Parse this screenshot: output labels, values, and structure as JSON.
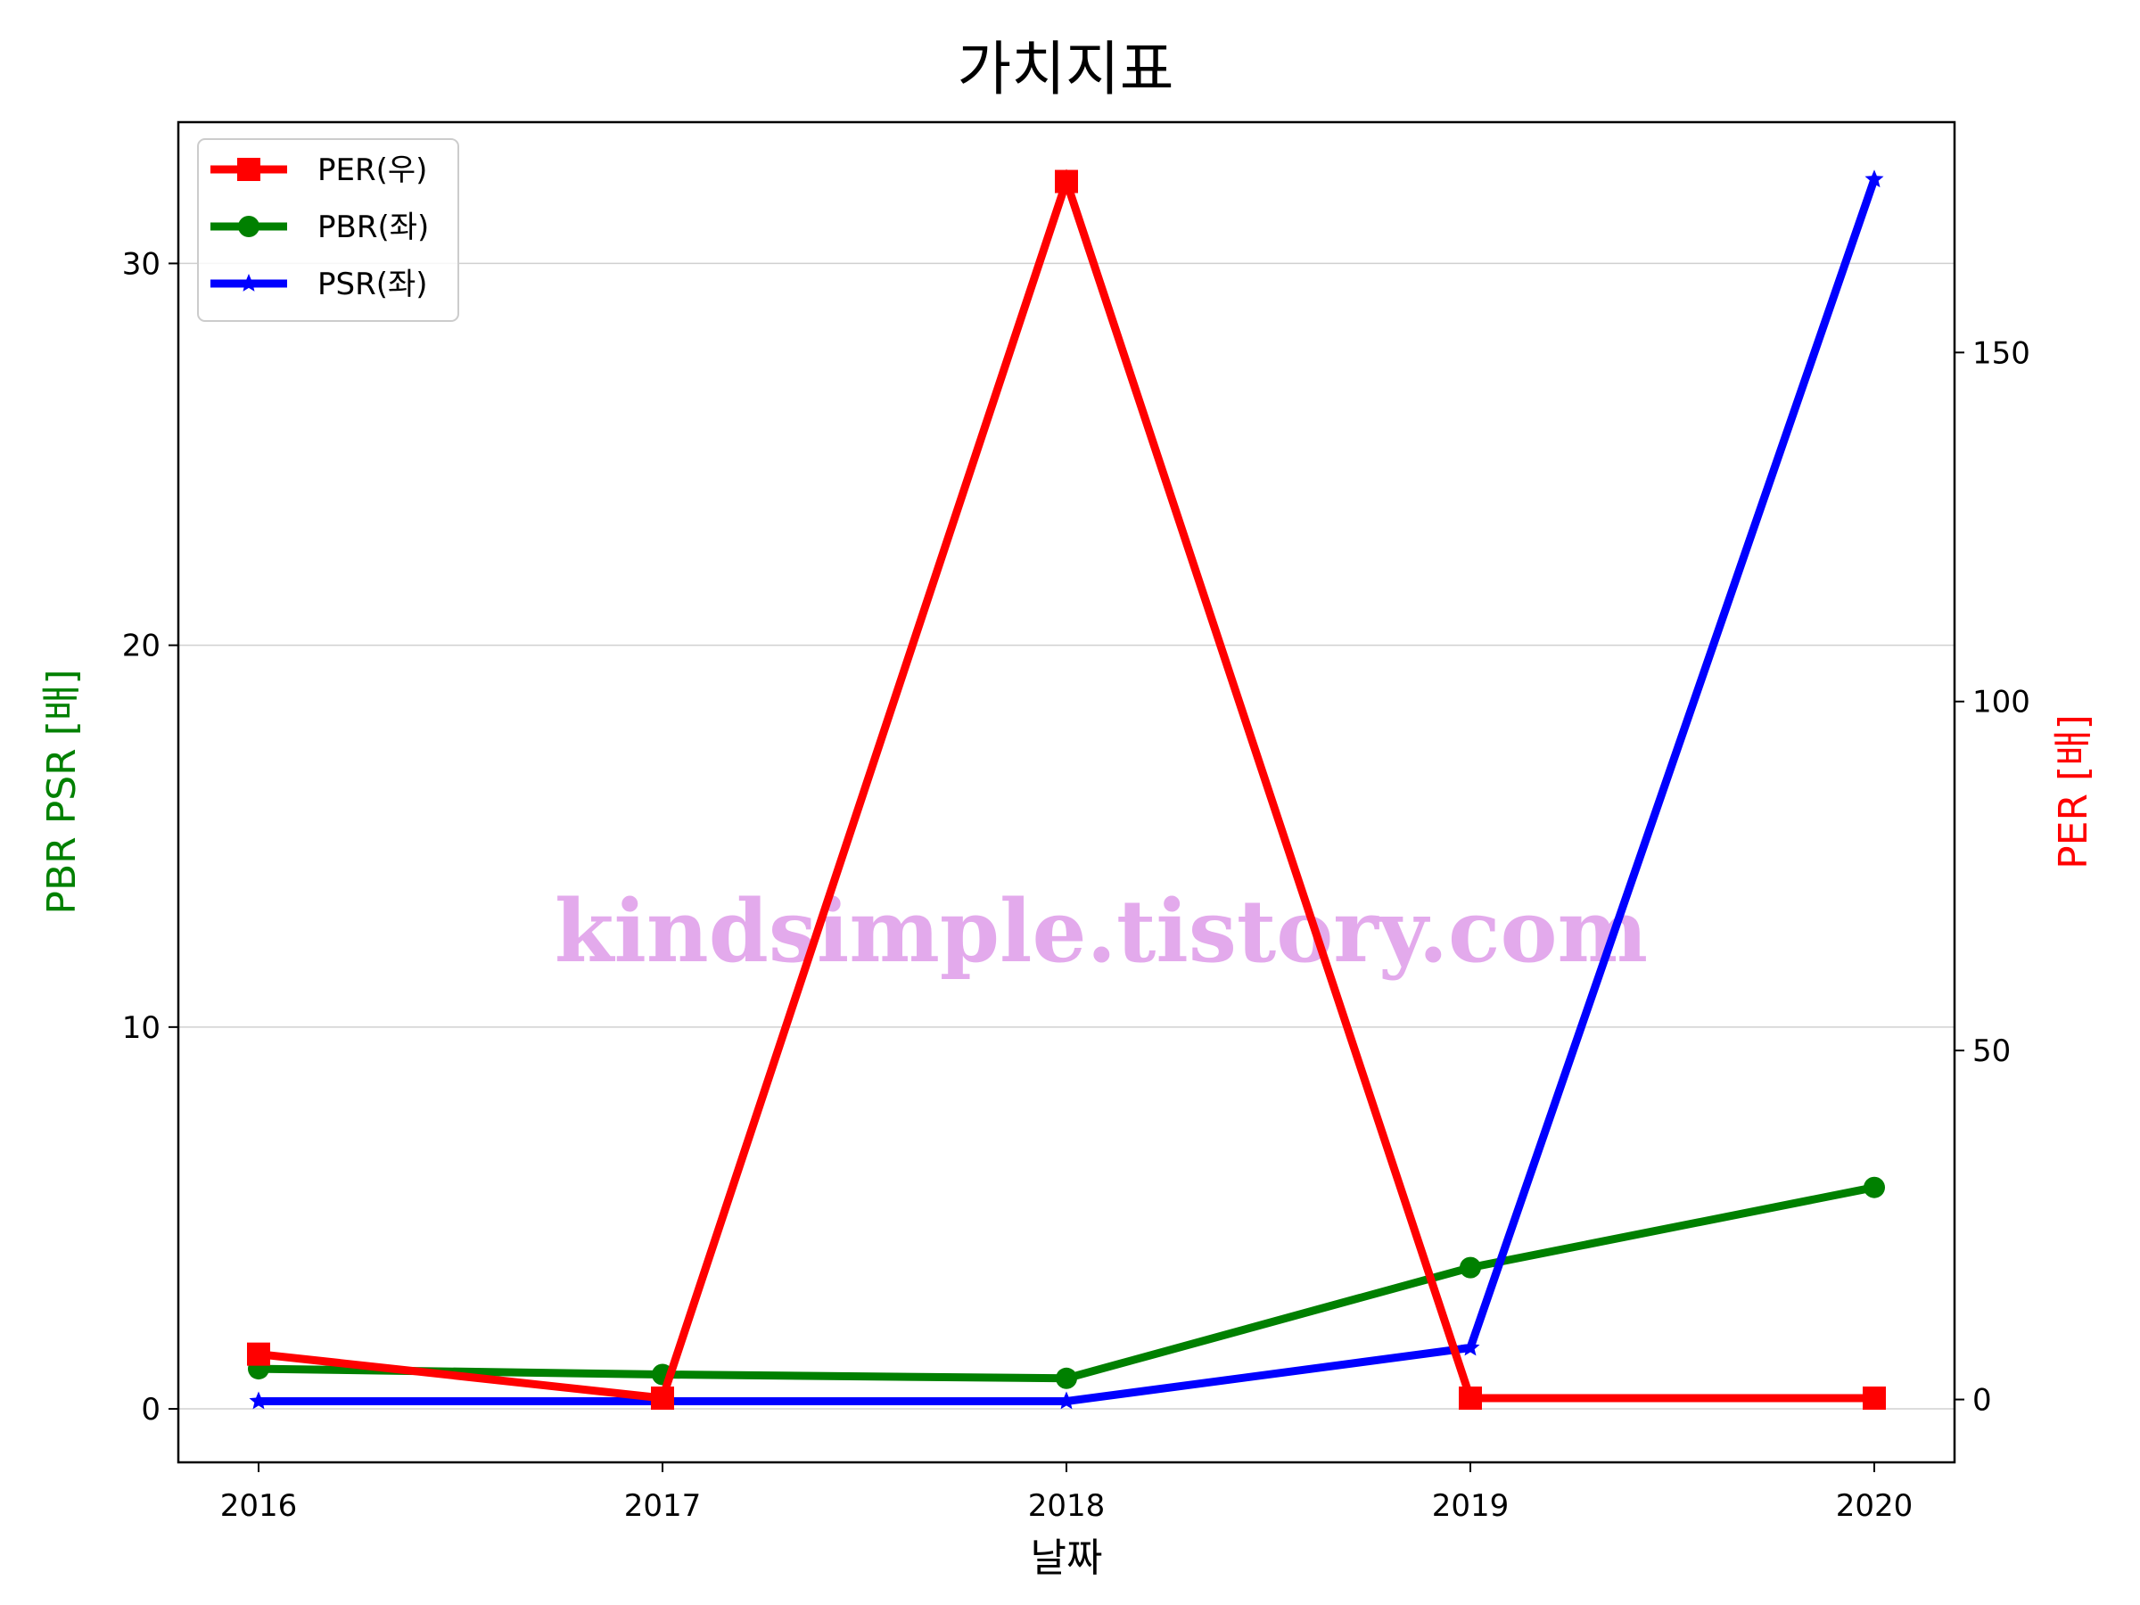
{
  "chart_data": {
    "type": "line",
    "title": "가치지표",
    "xlabel": "날짜",
    "ylabel_left": "PBR PSR [배]",
    "ylabel_right": "PER [배]",
    "categories": [
      "2016",
      "2017",
      "2018",
      "2019",
      "2020"
    ],
    "y_left_ticks": [
      0,
      10,
      20,
      30
    ],
    "y_right_ticks": [
      0,
      50,
      100,
      150
    ],
    "ylim_left": [
      -1.4,
      33.7
    ],
    "ylim_right": [
      -9,
      183
    ],
    "grid": "horizontal",
    "legend_position": "top-left",
    "series": [
      {
        "name": "PER(우)",
        "axis": "right",
        "color": "#ff0000",
        "marker": "square",
        "values": [
          6.5,
          0.2,
          174.5,
          0.2,
          0.2
        ]
      },
      {
        "name": "PBR(좌)",
        "axis": "left",
        "color": "#008000",
        "marker": "circle",
        "values": [
          1.05,
          0.9,
          0.8,
          3.7,
          5.8
        ]
      },
      {
        "name": "PSR(좌)",
        "axis": "left",
        "color": "#0000ff",
        "marker": "star",
        "values": [
          0.2,
          0.2,
          0.2,
          1.6,
          32.2
        ]
      }
    ],
    "watermark": "kindsimple.tistory.com",
    "axis_colors": {
      "left_label": "#008000",
      "right_label": "#ff0000"
    }
  }
}
